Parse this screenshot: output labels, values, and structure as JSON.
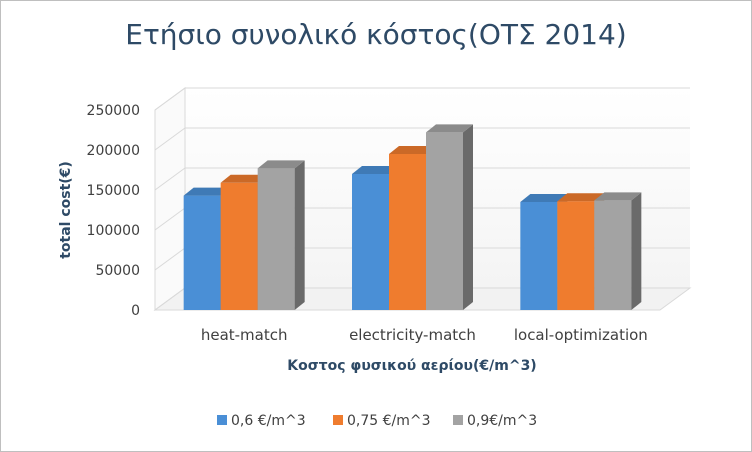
{
  "chart_data": {
    "type": "bar",
    "title": "Ετήσιο συνολικό κόστος(ΟΤΣ 2014)",
    "xlabel": "Κοστος φυσικού αερίου(€/m^3)",
    "ylabel": "total cost(€)",
    "categories": [
      "heat-match",
      "electricity-match",
      "local-optimization"
    ],
    "series": [
      {
        "name": "0,6 €/m^3",
        "values": [
          143000,
          170000,
          135000
        ],
        "color": "#4a8fd6"
      },
      {
        "name": "0,75 €/m^3",
        "values": [
          159000,
          195000,
          136000
        ],
        "color": "#ef7c2e"
      },
      {
        "name": "0,9€/m^3",
        "values": [
          177000,
          222000,
          137000
        ],
        "color": "#a3a3a3"
      }
    ],
    "ylim": [
      0,
      250000
    ],
    "yticks": [
      "0",
      "50000",
      "100000",
      "150000",
      "200000",
      "250000"
    ],
    "grid": true,
    "legend": "bottom"
  }
}
